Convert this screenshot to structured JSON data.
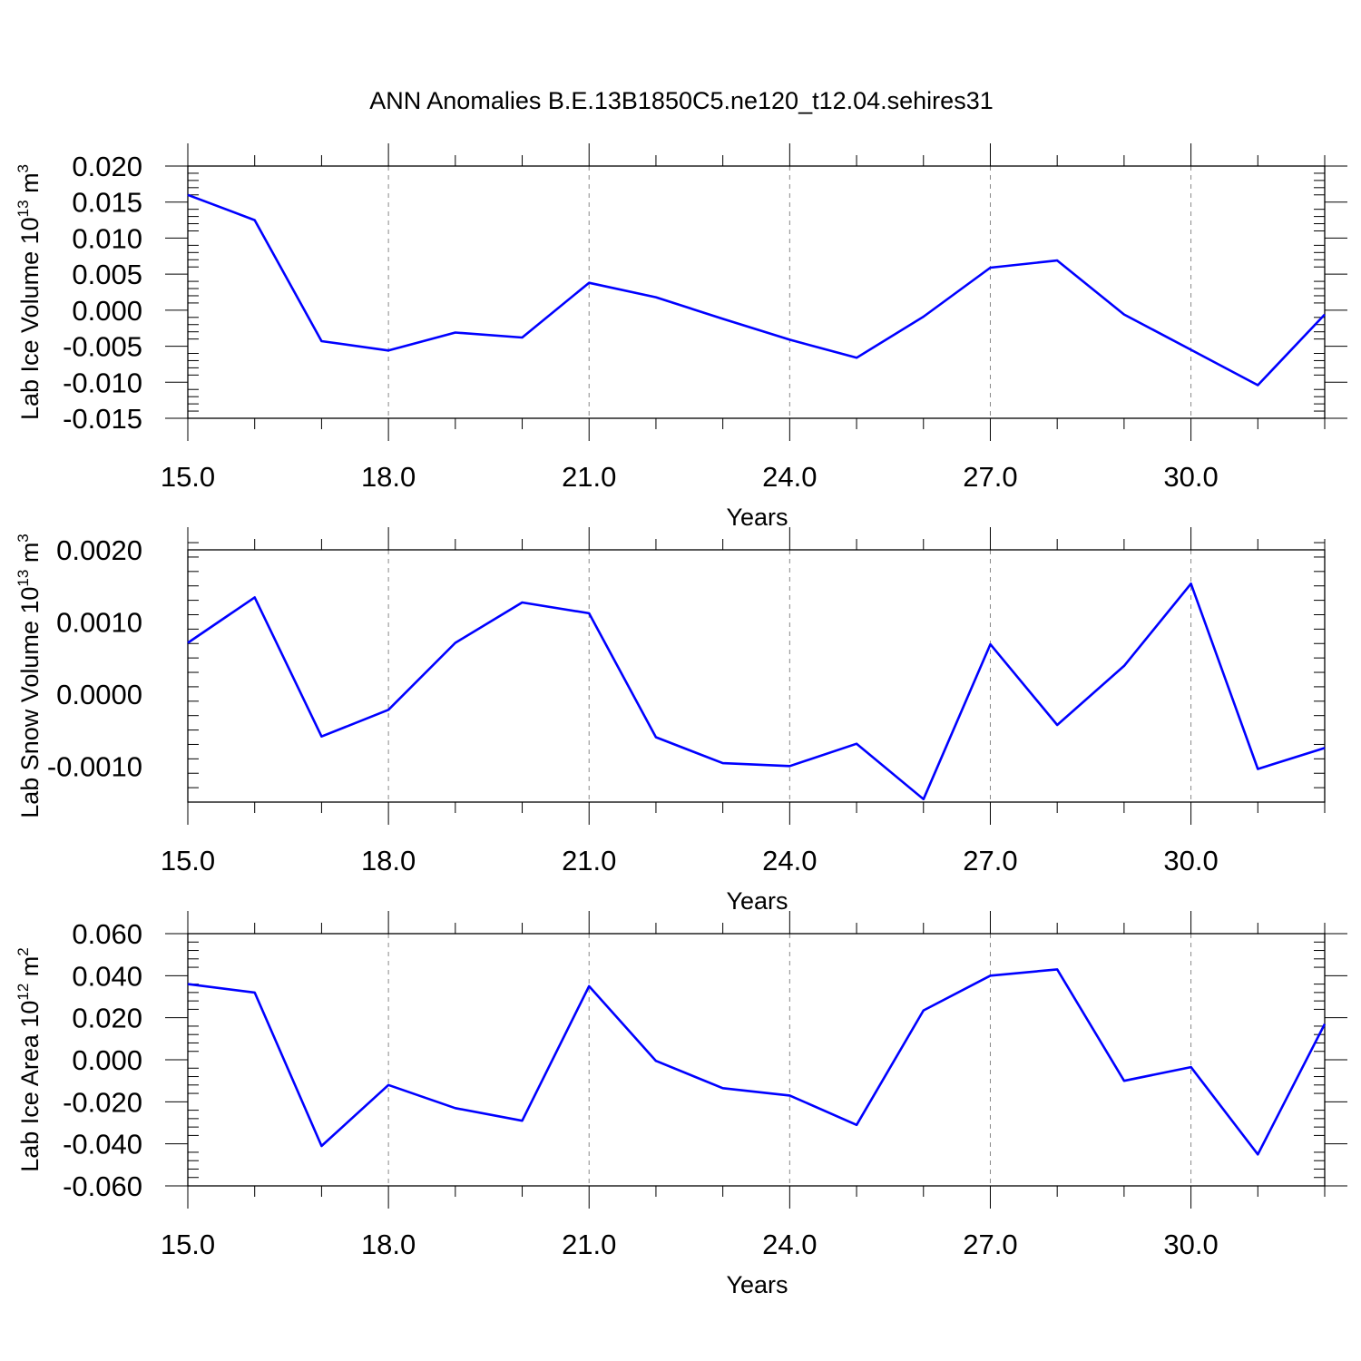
{
  "chart_data": {
    "title": "ANN Anomalies B.E.13B1850C5.ne120_t12.04.sehires31",
    "colors": {
      "series": "#0000ff",
      "grid": "#888888",
      "axes": "#000000"
    },
    "panels": [
      {
        "type": "line",
        "ylabel": {
          "text": "Lab Ice Volume 10",
          "sup1": "13",
          "unit": " m",
          "sup2": "3"
        },
        "xlabel": "Years",
        "xlim": [
          15,
          32
        ],
        "ylim": [
          -0.015,
          0.02
        ],
        "xticks": [
          15,
          18,
          21,
          24,
          27,
          30
        ],
        "xtick_labels": [
          "15.0",
          "18.0",
          "21.0",
          "24.0",
          "27.0",
          "30.0"
        ],
        "yticks": [
          -0.015,
          -0.01,
          -0.005,
          0,
          0.005,
          0.01,
          0.015,
          0.02
        ],
        "ytick_labels": [
          "-0.015",
          "-0.010",
          "-0.005",
          "0.000",
          "0.005",
          "0.010",
          "0.015",
          "0.020"
        ],
        "grid": "vertical dashed at major x ticks",
        "x": [
          15,
          16,
          17,
          18,
          19,
          20,
          21,
          22,
          23,
          24,
          25,
          26,
          27,
          28,
          29,
          30,
          31,
          32
        ],
        "values": [
          0.016,
          0.0125,
          -0.0043,
          -0.0056,
          -0.0031,
          -0.0038,
          0.0038,
          0.0018,
          -0.0012,
          -0.0041,
          -0.0066,
          -0.0009,
          0.0059,
          0.0069,
          -0.0006,
          -0.0055,
          -0.0104,
          -0.0006
        ]
      },
      {
        "type": "line",
        "ylabel": {
          "text": "Lab Snow Volume 10",
          "sup1": "13",
          "unit": " m",
          "sup2": "3"
        },
        "xlabel": "Years",
        "xlim": [
          15,
          32
        ],
        "ylim": [
          -0.0015,
          0.002
        ],
        "xticks": [
          15,
          18,
          21,
          24,
          27,
          30
        ],
        "xtick_labels": [
          "15.0",
          "18.0",
          "21.0",
          "24.0",
          "27.0",
          "30.0"
        ],
        "yticks": [
          -0.001,
          0,
          0.001,
          0.002
        ],
        "ytick_labels": [
          "-0.0010",
          "0.0000",
          "0.0010",
          "0.0020"
        ],
        "grid": "vertical dashed at major x ticks",
        "x": [
          15,
          16,
          17,
          18,
          19,
          20,
          21,
          22,
          23,
          24,
          25,
          26,
          27,
          28,
          29,
          30,
          31,
          32
        ],
        "values": [
          0.00071,
          0.00134,
          -0.00059,
          -0.00022,
          0.00071,
          0.00127,
          0.00112,
          -0.0006,
          -0.00096,
          -0.001,
          -0.00069,
          -0.00146,
          0.00069,
          -0.00043,
          0.00039,
          0.00153,
          -0.00104,
          -0.00075
        ]
      },
      {
        "type": "line",
        "ylabel": {
          "text": "Lab Ice Area 10",
          "sup1": "12",
          "unit": " m",
          "sup2": "2"
        },
        "xlabel": "Years",
        "xlim": [
          15,
          32
        ],
        "ylim": [
          -0.06,
          0.06
        ],
        "xticks": [
          15,
          18,
          21,
          24,
          27,
          30
        ],
        "xtick_labels": [
          "15.0",
          "18.0",
          "21.0",
          "24.0",
          "27.0",
          "30.0"
        ],
        "yticks": [
          -0.06,
          -0.04,
          -0.02,
          0,
          0.02,
          0.04,
          0.06
        ],
        "ytick_labels": [
          "-0.060",
          "-0.040",
          "-0.020",
          "0.000",
          "0.020",
          "0.040",
          "0.060"
        ],
        "grid": "vertical dashed at major x ticks",
        "x": [
          15,
          16,
          17,
          18,
          19,
          20,
          21,
          22,
          23,
          24,
          25,
          26,
          27,
          28,
          29,
          30,
          31,
          32
        ],
        "values": [
          0.036,
          0.032,
          -0.041,
          -0.012,
          -0.023,
          -0.029,
          0.035,
          -0.0005,
          -0.0135,
          -0.017,
          -0.031,
          0.0235,
          0.04,
          0.043,
          -0.01,
          -0.0035,
          -0.045,
          0.017
        ]
      }
    ]
  }
}
